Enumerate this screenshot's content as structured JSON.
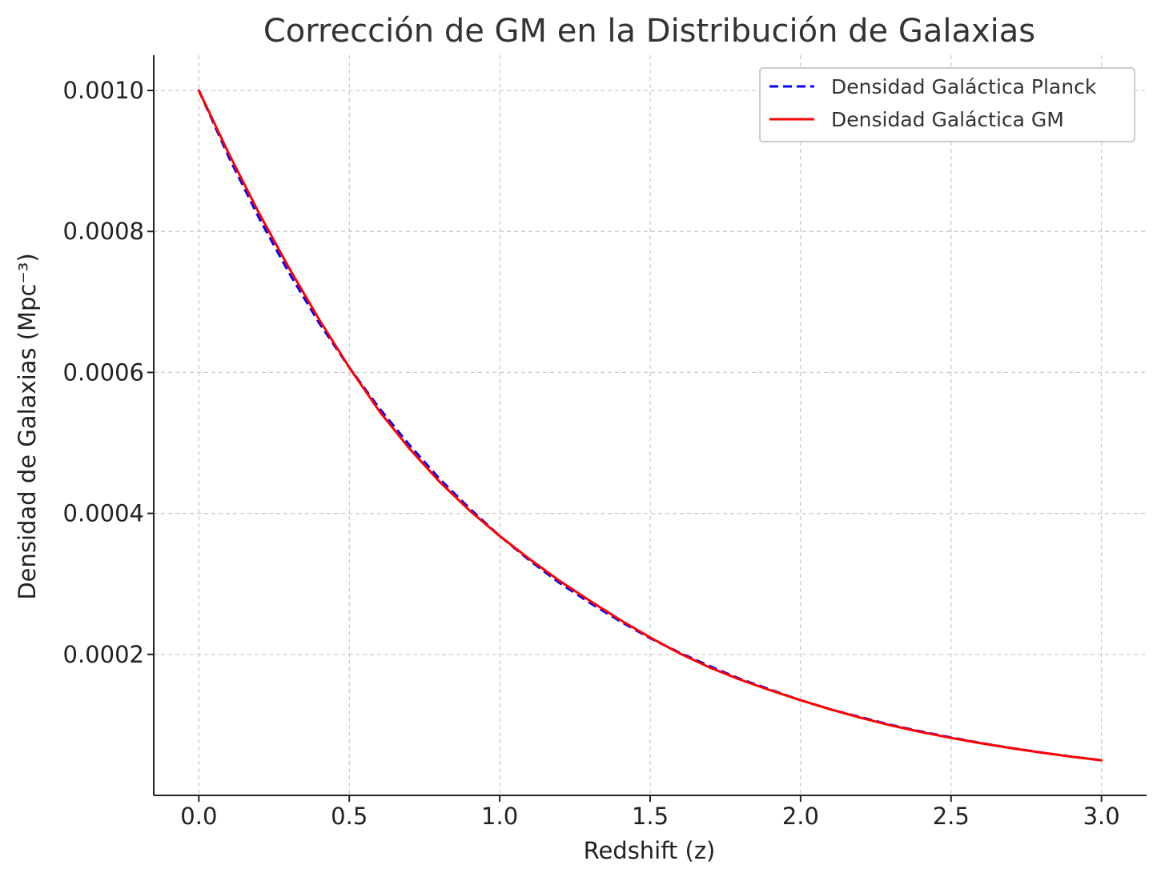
{
  "chart_data": {
    "type": "line",
    "title": "Corrección de GM en la Distribución de Galaxias",
    "xlabel": "Redshift (z)",
    "ylabel": "Densidad de Galaxias (Mpc⁻³)",
    "xlim": [
      -0.15,
      3.15
    ],
    "ylim": [
      0.0,
      0.00105
    ],
    "xticks": [
      0.0,
      0.5,
      1.0,
      1.5,
      2.0,
      2.5,
      3.0
    ],
    "xtick_labels": [
      "0.0",
      "0.5",
      "1.0",
      "1.5",
      "2.0",
      "2.5",
      "3.0"
    ],
    "yticks": [
      0.0002,
      0.0004,
      0.0006,
      0.0008,
      0.001
    ],
    "ytick_labels": [
      "0.0002",
      "0.0004",
      "0.0006",
      "0.0008",
      "0.0010"
    ],
    "grid": true,
    "legend_position": "top-right",
    "series": [
      {
        "name": "Densidad Galáctica Planck",
        "color": "#0000ff",
        "style": "dashed",
        "x": [
          0.0,
          0.1,
          0.2,
          0.3,
          0.4,
          0.5,
          0.6,
          0.7,
          0.8,
          0.9,
          1.0,
          1.1,
          1.2,
          1.3,
          1.4,
          1.5,
          1.6,
          1.7,
          1.8,
          1.9,
          2.0,
          2.1,
          2.2,
          2.3,
          2.4,
          2.5,
          2.6,
          2.7,
          2.8,
          2.9,
          3.0
        ],
        "y": [
          0.001,
          0.000905,
          0.000819,
          0.000741,
          0.00067,
          0.000607,
          0.000549,
          0.000497,
          0.000449,
          0.000407,
          0.000368,
          0.000333,
          0.000301,
          0.000273,
          0.000247,
          0.000223,
          0.000202,
          0.000183,
          0.000165,
          0.00015,
          0.000135,
          0.000122,
          0.000111,
          0.0001,
          9.07e-05,
          8.21e-05,
          7.43e-05,
          6.72e-05,
          6.08e-05,
          5.5e-05,
          4.98e-05
        ]
      },
      {
        "name": "Densidad Galáctica GM",
        "color": "#ff0000",
        "style": "solid",
        "x": [
          0.0,
          0.1,
          0.2,
          0.3,
          0.4,
          0.5,
          0.6,
          0.7,
          0.8,
          0.9,
          1.0,
          1.1,
          1.2,
          1.3,
          1.4,
          1.5,
          1.6,
          1.7,
          1.8,
          1.9,
          2.0,
          2.1,
          2.2,
          2.3,
          2.4,
          2.5,
          2.6,
          2.7,
          2.8,
          2.9,
          3.0
        ],
        "y": [
          0.001,
          0.00091,
          0.000826,
          0.000748,
          0.000675,
          0.000607,
          0.000545,
          0.000492,
          0.000445,
          0.000404,
          0.000368,
          0.000335,
          0.000304,
          0.000276,
          0.000249,
          0.000224,
          0.000201,
          0.000181,
          0.000164,
          0.000149,
          0.000135,
          0.000122,
          0.00011,
          9.93e-05,
          8.99e-05,
          8.15e-05,
          7.39e-05,
          6.7e-05,
          6.07e-05,
          5.49e-05,
          4.98e-05
        ]
      }
    ]
  }
}
